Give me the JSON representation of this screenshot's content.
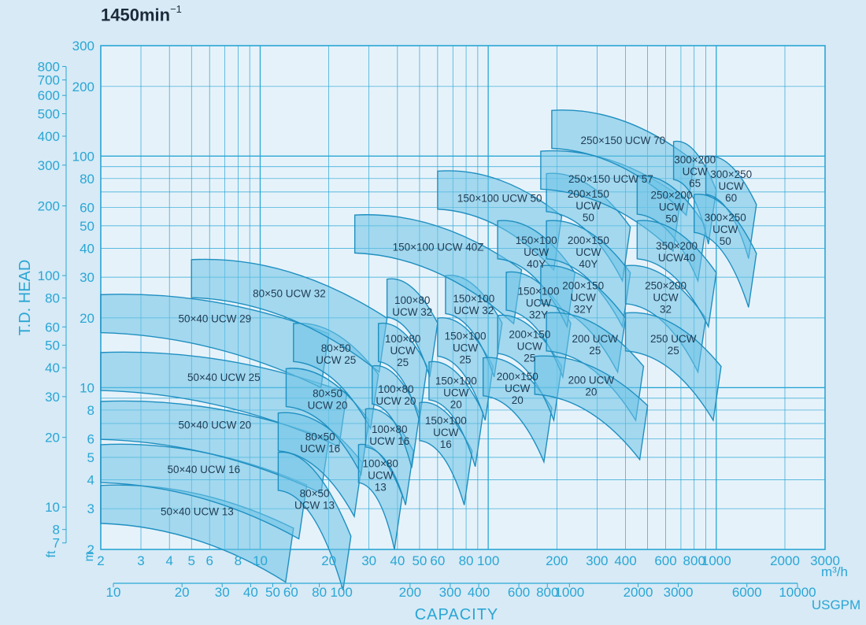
{
  "header": {
    "speed_main": "1450min",
    "speed_exp": "−1"
  },
  "chart_data": {
    "type": "area",
    "title": "1450min−1",
    "xlabel": "CAPACITY",
    "ylabel": "T.D. HEAD",
    "x_scale": "log",
    "y_scale": "log",
    "xlim": [
      2,
      3000
    ],
    "ylim": [
      2,
      300
    ],
    "grid": true,
    "x_unit_label": "m³/h",
    "x2_unit_label": "USGPM",
    "y_unit_label": "m",
    "y2_unit_label": "ft",
    "x_ticks_m3h": [
      "2",
      "3",
      "4",
      "5",
      "6",
      "8",
      "10",
      "20",
      "30",
      "40",
      "50",
      "60",
      "80",
      "100",
      "200",
      "300",
      "400",
      "600",
      "800",
      "1000",
      "2000",
      "3000"
    ],
    "x_ticks_usgpm": [
      "10",
      "20",
      "30",
      "40",
      "50",
      "60",
      "80",
      "100",
      "200",
      "300",
      "400",
      "600",
      "800",
      "1000",
      "2000",
      "3000",
      "6000",
      "10000"
    ],
    "y_ticks_m": [
      "2",
      "3",
      "4",
      "5",
      "6",
      "8",
      "10",
      "20",
      "30",
      "40",
      "50",
      "60",
      "80",
      "100",
      "200",
      "300"
    ],
    "y_ticks_ft": [
      "7",
      "8",
      "10",
      "20",
      "30",
      "40",
      "50",
      "60",
      "80",
      "100",
      "200",
      "300",
      "400",
      "500",
      "600",
      "700",
      "800"
    ],
    "series": [
      {
        "name": "50×40 UCW 13",
        "label": "50×40 UCW 13",
        "q": [
          2,
          14
        ],
        "h": [
          3.6,
          2.6
        ],
        "hmin": 4.4,
        "qmin_low": 1.9,
        "qmax_low": 12.5
      },
      {
        "name": "50×40 UCW 16",
        "label": "50×40 UCW 16",
        "q": [
          2,
          16
        ],
        "h": [
          5.4,
          4.0
        ],
        "hmin": 5.6
      },
      {
        "name": "50×40 UCW 20",
        "label": "50×40 UCW 20",
        "q": [
          2,
          20
        ],
        "h": [
          8.3,
          6.3
        ],
        "hmin": 9.0
      },
      {
        "name": "50×40 UCW 25",
        "label": "50×40 UCW 25",
        "q": [
          2,
          24
        ],
        "h": [
          13.5,
          10.0
        ],
        "hmin": 14.5
      },
      {
        "name": "50×40 UCW 29",
        "label": "50×40 UCW 29",
        "q": [
          2,
          20
        ],
        "h": [
          24,
          18
        ],
        "hmin": 25
      },
      {
        "name": "80×50 UCW 13",
        "label": "80×50\nUCW 13",
        "q": [
          12,
          25
        ],
        "h": [
          5.0,
          2.4
        ],
        "hmin": 5.2
      },
      {
        "name": "80×50 UCW 16",
        "label": "80×50\nUCW 16",
        "q": [
          12,
          28
        ],
        "h": [
          7.4,
          5.0
        ],
        "hmin": 7.6
      },
      {
        "name": "80×50 UCW 20",
        "label": "80×50\nUCW 20",
        "q": [
          13,
          30
        ],
        "h": [
          11.5,
          7.6
        ],
        "hmin": 11.9
      },
      {
        "name": "80×50 UCW 25",
        "label": "80×50\nUCW 25",
        "q": [
          14,
          33
        ],
        "h": [
          18,
          12
        ],
        "hmin": 18.5
      },
      {
        "name": "80×50 UCW 32",
        "label": "80×50 UCW 32",
        "q": [
          5,
          36
        ],
        "h": [
          34,
          21
        ],
        "hmin": 35
      },
      {
        "name": "100×80 UCW 13",
        "label": "100×80\nUCW\n13",
        "q": [
          27,
          42
        ],
        "h": [
          5.4,
          3.6
        ],
        "hmin": 5.6
      },
      {
        "name": "100×80 UCW 16",
        "label": "100×80\nUCW  16",
        "q": [
          29,
          47
        ],
        "h": [
          7.7,
          5.6
        ],
        "hmin": 8.0
      },
      {
        "name": "100×80 UCW 20",
        "label": "100×80\nUCW  20",
        "q": [
          31,
          50
        ],
        "h": [
          11.8,
          8.1
        ],
        "hmin": 12.2
      },
      {
        "name": "100×80 UCW 25",
        "label": "100×80\nUCW\n25",
        "q": [
          33,
          54
        ],
        "h": [
          18,
          13
        ],
        "hmin": 18.6
      },
      {
        "name": "100×80 UCW 32",
        "label": "100×80\nUCW  32",
        "q": [
          36,
          60
        ],
        "h": [
          28,
          20
        ],
        "hmin": 29
      },
      {
        "name": "150×100 UCW 16",
        "label": "150×100\nUCW\n16",
        "q": [
          50,
          85
        ],
        "h": [
          8.2,
          5.6
        ],
        "hmin": 8.4
      },
      {
        "name": "150×100 UCW 20",
        "label": "150×100\nUCW\n20",
        "q": [
          55,
          95
        ],
        "h": [
          12.3,
          8.2
        ],
        "hmin": 12.5
      },
      {
        "name": "150×100 UCW 25",
        "label": "150×100\nUCW\n25",
        "q": [
          60,
          105
        ],
        "h": [
          19,
          13
        ],
        "hmin": 19.5
      },
      {
        "name": "150×100 UCW 32",
        "label": "150×100\nUCW  32",
        "q": [
          65,
          115
        ],
        "h": [
          29,
          20
        ],
        "hmin": 30
      },
      {
        "name": "150×100 UCW 40Z",
        "label": "150×100 UCW 40Z",
        "q": [
          26,
          140
        ],
        "h": [
          53,
          34
        ],
        "hmin": 54
      },
      {
        "name": "150×100 UCW 50",
        "label": "150×100 UCW 50",
        "q": [
          60,
          210
        ],
        "h": [
          82,
          58
        ],
        "hmin": 83
      },
      {
        "name": "200×150 UCW 20",
        "label": "200×150\nUCW\n20",
        "q": [
          95,
          190
        ],
        "h": [
          12.8,
          8.6
        ],
        "hmin": 13
      },
      {
        "name": "200×150 UCW 25",
        "label": "200×150\nUCW\n25",
        "q": [
          110,
          210
        ],
        "h": [
          19.5,
          13
        ],
        "hmin": 20
      },
      {
        "name": "150×100 UCW 32Y",
        "label": "150×100\nUCW\n32Y",
        "q": [
          120,
          230
        ],
        "h": [
          30,
          20
        ],
        "hmin": 31
      },
      {
        "name": "150×100 UCW 40Y",
        "label": "150×100\nUCW\n40Y",
        "q": [
          110,
          240
        ],
        "h": [
          50,
          33
        ],
        "hmin": 51
      },
      {
        "name": "200×150 UCW 50",
        "label": "200×150\nUCW\n50",
        "q": [
          180,
          420
        ],
        "h": [
          80,
          52
        ],
        "hmin": 82
      },
      {
        "name": "200×150 UCW 40Y",
        "label": "200×150\nUCW\n40Y",
        "q": [
          180,
          420
        ],
        "h": [
          50,
          33
        ],
        "hmin": 51
      },
      {
        "name": "200×150 UCW 32Y",
        "label": "200×150\nUCW\n32Y",
        "q": [
          170,
          400
        ],
        "h": [
          32,
          21
        ],
        "hmin": 33
      },
      {
        "name": "200 UCW 25",
        "label": "200 UCW\n25",
        "q": [
          180,
          480
        ],
        "h": [
          20,
          13
        ],
        "hmin": 20.5
      },
      {
        "name": "200 UCW 20",
        "label": "200 UCW\n20",
        "q": [
          160,
          500
        ],
        "h": [
          13,
          8.8
        ],
        "hmin": 13.5
      },
      {
        "name": "250×150 UCW 57",
        "label": "250×150 UCW 57",
        "q": [
          170,
          700
        ],
        "h": [
          100,
          70
        ],
        "hmin": 102
      },
      {
        "name": "250×150 UCW 70",
        "label": "250×150 UCW 70",
        "q": [
          190,
          800
        ],
        "h": [
          150,
          100
        ],
        "hmin": 152
      },
      {
        "name": "250×200 UCW 50",
        "label": "250×200\nUCW\n50",
        "q": [
          450,
          900
        ],
        "h": [
          78,
          52
        ],
        "hmin": 80
      },
      {
        "name": "250×200 UCW 32",
        "label": "250×200\nUCW\n32",
        "q": [
          400,
          900
        ],
        "h": [
          32,
          21
        ],
        "hmin": 33
      },
      {
        "name": "250 UCW 25",
        "label": "250 UCW\n25",
        "q": [
          400,
          1050
        ],
        "h": [
          20,
          13
        ],
        "hmin": 21
      },
      {
        "name": "350×200 UCW 40",
        "label": "350×200\nUCW40",
        "q": [
          450,
          1000
        ],
        "h": [
          50,
          33
        ],
        "hmin": 51
      },
      {
        "name": "300×200 UCW 65",
        "label": "300×200\nUCW\n65",
        "q": [
          650,
          1000
        ],
        "h": [
          110,
          75
        ],
        "hmin": 112
      },
      {
        "name": "300×250 UCW 60",
        "label": "300×250\nUCW\n60",
        "q": [
          900,
          1500
        ],
        "h": [
          95,
          65
        ],
        "hmin": 97
      },
      {
        "name": "300×250 UCW 50",
        "label": "300×250\nUCW\n50",
        "q": [
          800,
          1500
        ],
        "h": [
          65,
          40
        ],
        "hmin": 67
      }
    ]
  }
}
